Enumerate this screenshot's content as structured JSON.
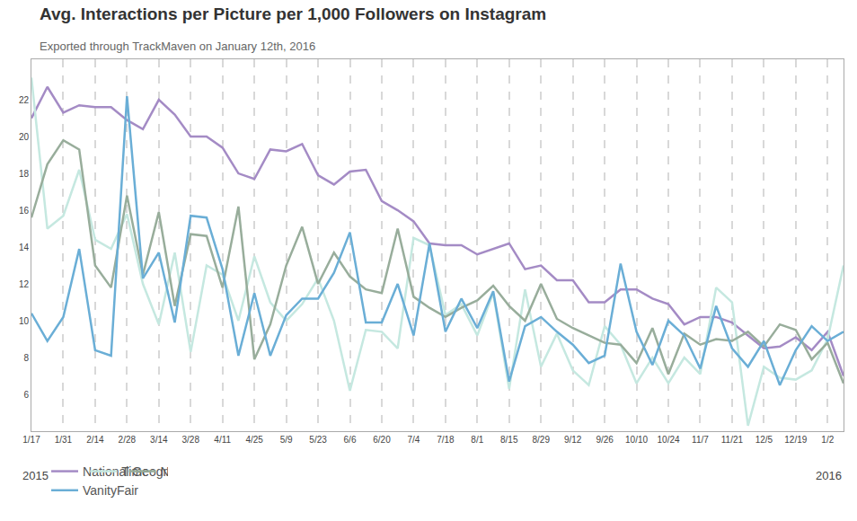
{
  "chart_data": {
    "type": "line",
    "title": "Avg. Interactions per Picture per 1,000 Followers on Instagram",
    "subtitle": "Exported through TrackMaven on January 12th, 2016",
    "annotations": [
      "2015",
      "2016"
    ],
    "categories": [
      "1/17",
      null,
      "1/31",
      null,
      "2/14",
      null,
      "2/28",
      null,
      "3/14",
      null,
      "3/28",
      null,
      "4/11",
      null,
      "4/25",
      null,
      "5/9",
      null,
      "5/23",
      null,
      "6/6",
      null,
      "6/20",
      null,
      "7/4",
      null,
      "7/18",
      null,
      "8/1",
      null,
      "8/15",
      null,
      "8/29",
      null,
      "9/12",
      null,
      "9/26",
      null,
      "10/10",
      null,
      "10/24",
      null,
      "11/7",
      null,
      "11/21",
      null,
      "12/5",
      null,
      "12/19",
      null,
      "1/2",
      null
    ],
    "series": [
      {
        "name": "National Geographic",
        "color": "#a48bc5",
        "values": [
          21.0,
          22.7,
          21.3,
          21.7,
          21.6,
          21.6,
          20.9,
          20.4,
          22.0,
          21.2,
          20.0,
          20.0,
          19.4,
          18.0,
          17.7,
          19.3,
          19.2,
          19.6,
          17.9,
          17.4,
          18.1,
          18.2,
          16.5,
          16.0,
          15.4,
          14.2,
          14.1,
          14.1,
          13.6,
          13.9,
          14.2,
          12.8,
          13.0,
          12.2,
          12.2,
          11.0,
          11.0,
          11.7,
          11.7,
          11.2,
          10.9,
          9.8,
          10.2,
          10.2,
          9.9,
          9.2,
          8.5,
          8.6,
          9.1,
          8.4,
          9.4,
          7.0
        ]
      },
      {
        "name": "Time",
        "color": "#c5e8e0",
        "values": [
          23.2,
          15.0,
          15.7,
          18.2,
          14.4,
          13.9,
          15.8,
          12.0,
          9.8,
          13.7,
          8.3,
          13.0,
          12.5,
          10.0,
          13.5,
          11.0,
          10.0,
          10.9,
          12.3,
          10.0,
          6.2,
          9.5,
          9.4,
          8.5,
          14.5,
          14.1,
          10.3,
          10.9,
          9.2,
          11.5,
          6.3,
          11.7,
          7.5,
          9.3,
          7.3,
          6.5,
          9.7,
          8.7,
          6.6,
          8.0,
          6.6,
          8.0,
          7.1,
          11.8,
          11.0,
          4.3,
          7.5,
          6.9,
          6.8,
          7.3,
          9.0,
          13.0
        ]
      },
      {
        "name": "NewYorker",
        "color": "#98ad9b",
        "values": [
          15.6,
          18.5,
          19.8,
          19.3,
          13.0,
          11.8,
          16.8,
          12.5,
          15.9,
          10.8,
          14.7,
          14.6,
          11.8,
          16.2,
          7.9,
          9.8,
          13.0,
          15.1,
          12.0,
          13.7,
          12.4,
          11.7,
          11.5,
          15.0,
          11.3,
          10.7,
          10.2,
          10.7,
          11.1,
          11.9,
          10.8,
          10.0,
          12.0,
          10.1,
          9.6,
          9.2,
          8.8,
          8.7,
          7.7,
          9.6,
          7.1,
          9.3,
          8.7,
          9.0,
          8.9,
          9.4,
          8.6,
          9.8,
          9.5,
          7.9,
          8.8,
          6.6
        ]
      },
      {
        "name": "VanityFair",
        "color": "#6aaed6",
        "values": [
          10.4,
          8.9,
          10.2,
          13.9,
          8.4,
          8.1,
          22.2,
          12.3,
          13.7,
          9.9,
          15.7,
          15.6,
          12.8,
          8.1,
          11.5,
          8.1,
          10.3,
          11.2,
          11.2,
          12.6,
          14.8,
          9.9,
          9.9,
          12.0,
          9.2,
          14.2,
          9.4,
          11.2,
          9.6,
          11.6,
          6.7,
          9.7,
          10.2,
          9.4,
          8.7,
          7.7,
          8.1,
          13.1,
          9.4,
          7.6,
          10.0,
          9.2,
          7.4,
          10.8,
          8.5,
          7.5,
          8.9,
          6.5,
          8.4,
          9.7,
          8.9,
          9.4
        ]
      }
    ],
    "ylim": [
      4,
      24.2
    ],
    "yticks": [
      6,
      8,
      10,
      12,
      14,
      16,
      18,
      20,
      22
    ],
    "grid": "x",
    "legend": "bottom"
  }
}
